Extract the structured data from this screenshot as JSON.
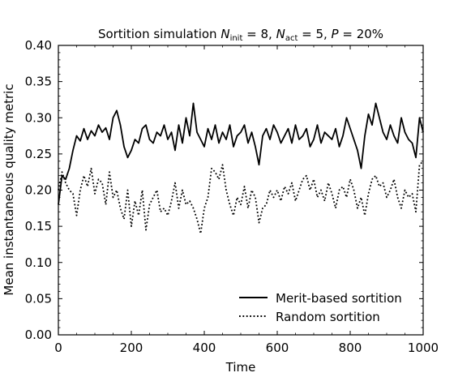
{
  "chart_data": {
    "type": "line",
    "title": {
      "prefix": "Sortition simulation ",
      "n_init_symbol": "N",
      "n_init_sub": "init",
      "n_init_value": " = 8, ",
      "n_act_symbol": "N",
      "n_act_sub": "act",
      "n_act_value": " = 5, ",
      "p_symbol": "P",
      "p_value": " = 20%"
    },
    "xlabel": "Time",
    "ylabel": "Mean instantaneous quality metric",
    "xlim": [
      0,
      1000
    ],
    "ylim": [
      0.0,
      0.4
    ],
    "x_ticks": [
      0,
      200,
      400,
      600,
      800,
      1000
    ],
    "x_tick_labels": [
      "0",
      "200",
      "400",
      "600",
      "800",
      "1000"
    ],
    "y_ticks": [
      0.0,
      0.05,
      0.1,
      0.15,
      0.2,
      0.25,
      0.3,
      0.35,
      0.4
    ],
    "y_tick_labels": [
      "0.00",
      "0.05",
      "0.10",
      "0.15",
      "0.20",
      "0.25",
      "0.30",
      "0.35",
      "0.40"
    ],
    "grid": false,
    "legend_position": "lower-right",
    "series": [
      {
        "name": "Merit-based sortition",
        "style": "solid",
        "color": "#000000",
        "x": [
          0,
          10,
          20,
          30,
          40,
          50,
          60,
          70,
          80,
          90,
          100,
          110,
          120,
          130,
          140,
          150,
          160,
          170,
          180,
          190,
          200,
          210,
          220,
          230,
          240,
          250,
          260,
          270,
          280,
          290,
          300,
          310,
          320,
          330,
          340,
          350,
          360,
          370,
          380,
          390,
          400,
          410,
          420,
          430,
          440,
          450,
          460,
          470,
          480,
          490,
          500,
          510,
          520,
          530,
          540,
          550,
          560,
          570,
          580,
          590,
          600,
          610,
          620,
          630,
          640,
          650,
          660,
          670,
          680,
          690,
          700,
          710,
          720,
          730,
          740,
          750,
          760,
          770,
          780,
          790,
          800,
          810,
          820,
          830,
          840,
          850,
          860,
          870,
          880,
          890,
          900,
          910,
          920,
          930,
          940,
          950,
          960,
          970,
          980,
          990,
          1000
        ],
        "y": [
          0.18,
          0.22,
          0.215,
          0.23,
          0.255,
          0.275,
          0.268,
          0.285,
          0.27,
          0.282,
          0.275,
          0.29,
          0.28,
          0.286,
          0.27,
          0.3,
          0.31,
          0.29,
          0.26,
          0.245,
          0.255,
          0.27,
          0.265,
          0.285,
          0.29,
          0.27,
          0.265,
          0.28,
          0.275,
          0.29,
          0.27,
          0.28,
          0.255,
          0.29,
          0.265,
          0.3,
          0.275,
          0.32,
          0.28,
          0.27,
          0.26,
          0.285,
          0.27,
          0.29,
          0.265,
          0.28,
          0.27,
          0.29,
          0.26,
          0.275,
          0.28,
          0.29,
          0.265,
          0.28,
          0.26,
          0.235,
          0.275,
          0.285,
          0.27,
          0.29,
          0.28,
          0.265,
          0.275,
          0.285,
          0.265,
          0.29,
          0.27,
          0.275,
          0.285,
          0.26,
          0.27,
          0.29,
          0.265,
          0.28,
          0.275,
          0.27,
          0.285,
          0.26,
          0.275,
          0.3,
          0.285,
          0.27,
          0.255,
          0.23,
          0.275,
          0.305,
          0.29,
          0.32,
          0.3,
          0.28,
          0.27,
          0.29,
          0.275,
          0.265,
          0.3,
          0.28,
          0.27,
          0.265,
          0.245,
          0.3,
          0.28
        ]
      },
      {
        "name": "Random sortition",
        "style": "dotted",
        "color": "#000000",
        "x": [
          0,
          10,
          20,
          30,
          40,
          50,
          60,
          70,
          80,
          90,
          100,
          110,
          120,
          130,
          140,
          150,
          160,
          170,
          180,
          190,
          200,
          210,
          220,
          230,
          240,
          250,
          260,
          270,
          280,
          290,
          300,
          310,
          320,
          330,
          340,
          350,
          360,
          370,
          380,
          390,
          400,
          410,
          420,
          430,
          440,
          450,
          460,
          470,
          480,
          490,
          500,
          510,
          520,
          530,
          540,
          550,
          560,
          570,
          580,
          590,
          600,
          610,
          620,
          630,
          640,
          650,
          660,
          670,
          680,
          690,
          700,
          710,
          720,
          730,
          740,
          750,
          760,
          770,
          780,
          790,
          800,
          810,
          820,
          830,
          840,
          850,
          860,
          870,
          880,
          890,
          900,
          910,
          920,
          930,
          940,
          950,
          960,
          970,
          980,
          990,
          1000
        ],
        "y": [
          0.2,
          0.225,
          0.21,
          0.2,
          0.195,
          0.165,
          0.2,
          0.22,
          0.205,
          0.23,
          0.195,
          0.215,
          0.21,
          0.18,
          0.225,
          0.19,
          0.2,
          0.175,
          0.16,
          0.2,
          0.15,
          0.185,
          0.165,
          0.2,
          0.145,
          0.18,
          0.19,
          0.2,
          0.17,
          0.175,
          0.165,
          0.185,
          0.21,
          0.175,
          0.2,
          0.18,
          0.185,
          0.175,
          0.16,
          0.14,
          0.175,
          0.19,
          0.23,
          0.225,
          0.215,
          0.235,
          0.2,
          0.18,
          0.165,
          0.19,
          0.18,
          0.205,
          0.175,
          0.2,
          0.19,
          0.155,
          0.175,
          0.18,
          0.2,
          0.19,
          0.2,
          0.185,
          0.205,
          0.195,
          0.21,
          0.185,
          0.2,
          0.215,
          0.22,
          0.2,
          0.215,
          0.19,
          0.2,
          0.185,
          0.21,
          0.195,
          0.175,
          0.2,
          0.205,
          0.19,
          0.215,
          0.2,
          0.175,
          0.19,
          0.165,
          0.195,
          0.215,
          0.22,
          0.205,
          0.21,
          0.19,
          0.2,
          0.215,
          0.19,
          0.175,
          0.2,
          0.19,
          0.195,
          0.17,
          0.235,
          0.24
        ]
      }
    ]
  }
}
